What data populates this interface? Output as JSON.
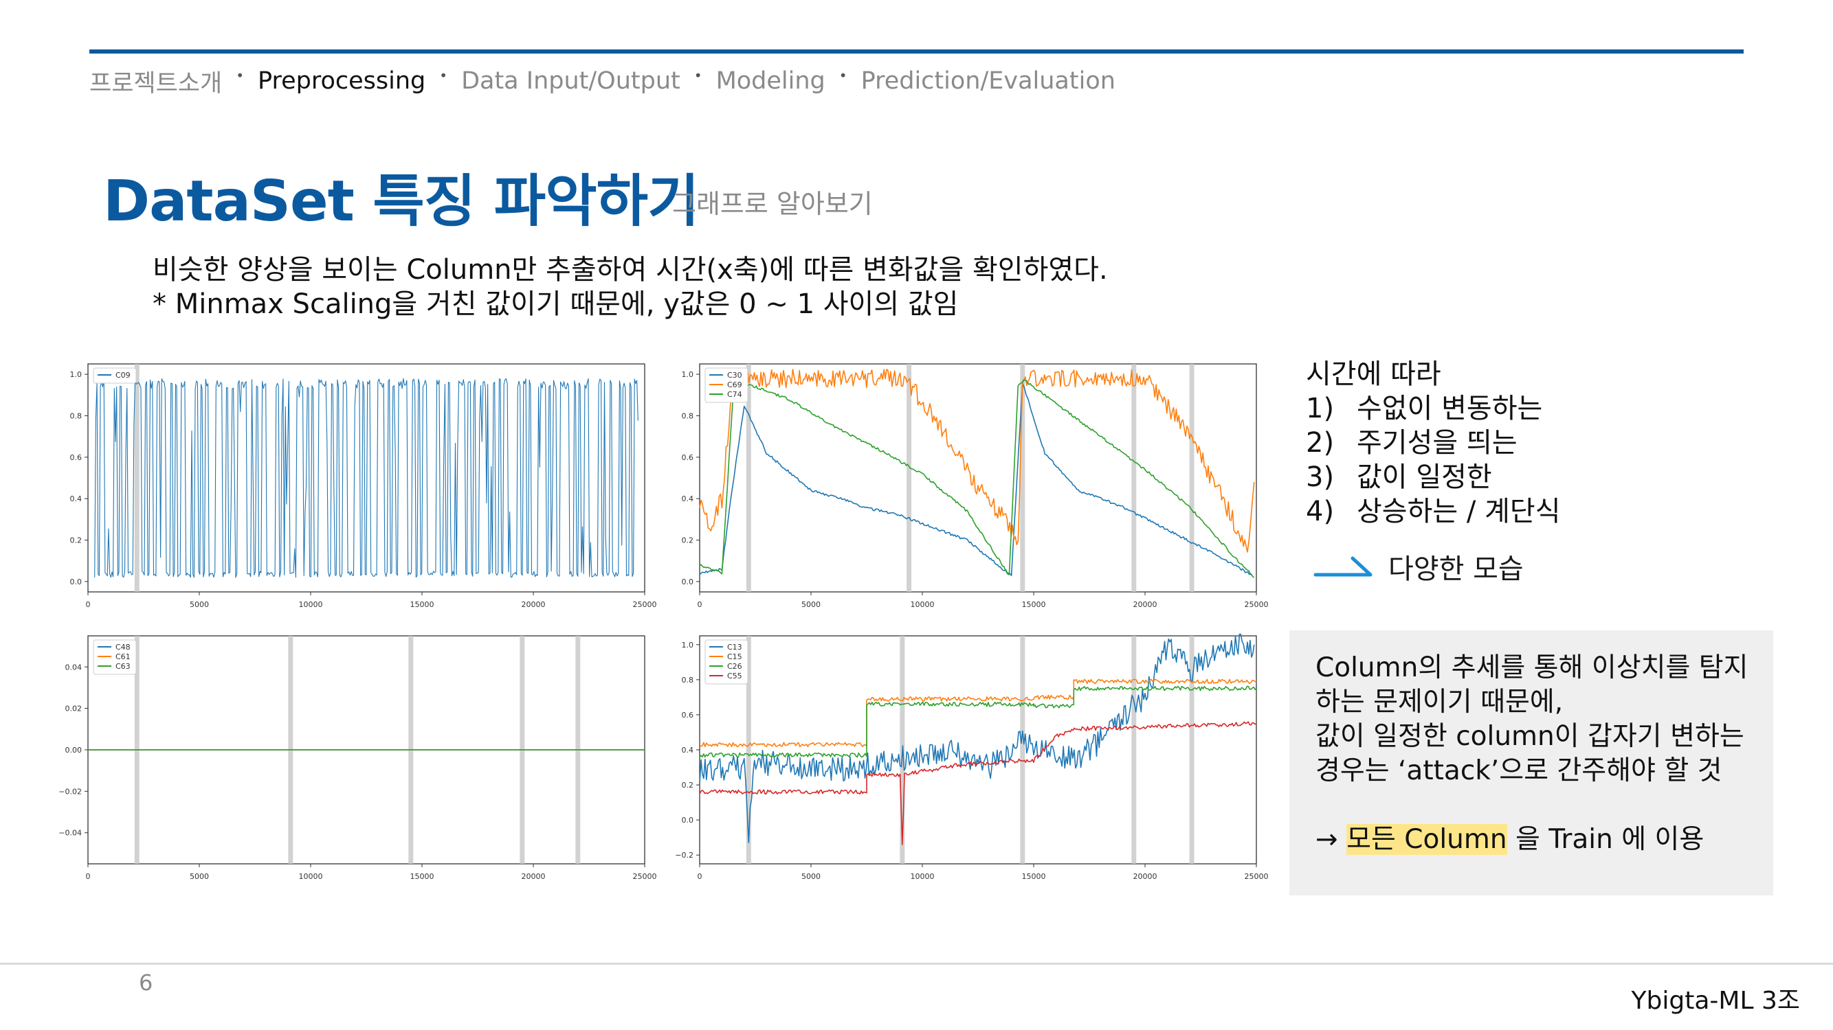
{
  "nav": {
    "items": [
      {
        "label": "프로젝트소개",
        "active": false
      },
      {
        "label": "Preprocessing",
        "active": true
      },
      {
        "label": "Data Input/Output",
        "active": false
      },
      {
        "label": "Modeling",
        "active": false
      },
      {
        "label": "Prediction/Evaluation",
        "active": false
      }
    ],
    "separator": "•"
  },
  "title": "DataSet 특징 파악하기",
  "subtitle": "그래프로 알아보기",
  "description": {
    "line1": "비슷한 양상을 보이는 Column만 추출하여 시간(x축)에 따른 변화값을 확인하였다.",
    "line2": "* Minmax Scaling을 거친 값이기 때문에, y값은 0 ~ 1 사이의 값임"
  },
  "trend": {
    "heading": "시간에 따라",
    "items": [
      {
        "num": "1)",
        "text": "수없이 변동하는"
      },
      {
        "num": "2)",
        "text": "주기성을 띄는"
      },
      {
        "num": "3)",
        "text": "값이 일정한"
      },
      {
        "num": "4)",
        "text": "상승하는 / 계단식"
      }
    ],
    "conclusion": "다양한 모습",
    "arrow_icon": "long-arrow-right-icon",
    "arrow_color": "#1a8fd8"
  },
  "note": {
    "line1": "Column의 추세를 통해 이상치를 탐지",
    "line2": "하는 문제이기 때문에,",
    "line3": "값이 일정한 column이 갑자기 변하는",
    "line4": "경우는 ‘attack’으로 간주해야 할 것",
    "arrow": "→",
    "highlight": "모든 Column",
    "rest": " 을 Train 에 이용",
    "highlight_color": "#fde68a"
  },
  "page_number": "6",
  "footer": "Ybigta-ML 3조",
  "colors": {
    "accent": "#0b5aa0",
    "c0": "#1f77b4",
    "c1": "#ff7f0e",
    "c2": "#2ca02c",
    "c3": "#d62728"
  },
  "chart_data": [
    {
      "type": "line",
      "xlim": [
        0,
        25000
      ],
      "ylim": [
        -0.05,
        1.05
      ],
      "xticks": [
        0,
        5000,
        10000,
        15000,
        20000,
        25000
      ],
      "xtick_labels": [
        "0",
        "5000",
        "10000",
        "15000",
        "20000",
        "25000"
      ],
      "yticks": [
        0,
        0.2,
        0.4,
        0.6,
        0.8,
        1.0
      ],
      "ytick_labels": [
        "0.0",
        "0.2",
        "0.4",
        "0.6",
        "0.8",
        "1.0"
      ],
      "legend": "top-left",
      "vlines": [
        2200
      ],
      "series": [
        {
          "name": "C09",
          "pattern": "oscillating",
          "low": 0.02,
          "high": 0.98
        }
      ]
    },
    {
      "type": "line",
      "xlim": [
        0,
        25000
      ],
      "ylim": [
        -0.05,
        1.05
      ],
      "xticks": [
        0,
        5000,
        10000,
        15000,
        20000,
        25000
      ],
      "xtick_labels": [
        "0",
        "5000",
        "10000",
        "15000",
        "20000",
        "25000"
      ],
      "yticks": [
        0,
        0.2,
        0.4,
        0.6,
        0.8,
        1.0
      ],
      "ytick_labels": [
        "0.0",
        "0.2",
        "0.4",
        "0.6",
        "0.8",
        "1.0"
      ],
      "legend": "top-left",
      "vlines": [
        2200,
        9400,
        14500,
        19500,
        22100
      ],
      "series": [
        {
          "name": "C30",
          "x": [
            0,
            1000,
            1400,
            2000,
            3000,
            5000,
            7000,
            7300,
            9000,
            12000,
            13500,
            14000,
            14500,
            15500,
            17000,
            19000,
            21000,
            23000,
            24800
          ],
          "y": [
            0.04,
            0.06,
            0.4,
            0.85,
            0.62,
            0.44,
            0.38,
            0.36,
            0.32,
            0.2,
            0.07,
            0.03,
            0.96,
            0.62,
            0.44,
            0.36,
            0.25,
            0.14,
            0.03
          ]
        },
        {
          "name": "C69",
          "x": [
            0,
            500,
            1000,
            1500,
            1800,
            4000,
            9000,
            9500,
            11000,
            12500,
            13800,
            14300,
            14500,
            15000,
            20000,
            20500,
            22000,
            23500,
            24600,
            24900
          ],
          "y": [
            0.4,
            0.27,
            0.4,
            0.96,
            0.98,
            0.98,
            0.98,
            0.94,
            0.72,
            0.45,
            0.3,
            0.2,
            0.97,
            0.98,
            0.98,
            0.92,
            0.7,
            0.4,
            0.15,
            0.48
          ]
        },
        {
          "name": "C74",
          "x": [
            0,
            1000,
            1500,
            2000,
            4000,
            6000,
            8000,
            10000,
            12000,
            13900,
            14300,
            14600,
            16000,
            18000,
            20000,
            22000,
            24000,
            24900
          ],
          "y": [
            0.08,
            0.04,
            0.9,
            0.96,
            0.88,
            0.75,
            0.64,
            0.52,
            0.34,
            0.03,
            0.95,
            0.97,
            0.86,
            0.7,
            0.54,
            0.36,
            0.12,
            0.02
          ]
        }
      ]
    },
    {
      "type": "line",
      "xlim": [
        0,
        25000
      ],
      "ylim": [
        -0.055,
        0.055
      ],
      "xticks": [
        0,
        5000,
        10000,
        15000,
        20000,
        25000
      ],
      "xtick_labels": [
        "0",
        "5000",
        "10000",
        "15000",
        "20000",
        "25000"
      ],
      "yticks": [
        -0.04,
        -0.02,
        0.0,
        0.02,
        0.04
      ],
      "ytick_labels": [
        "−0.04",
        "−0.02",
        "0.00",
        "0.02",
        "0.04"
      ],
      "legend": "top-left",
      "vlines": [
        2200,
        9100,
        14500,
        19500,
        22000
      ],
      "series": [
        {
          "name": "C48",
          "x": [
            0,
            25000
          ],
          "y": [
            0,
            0
          ]
        },
        {
          "name": "C61",
          "x": [
            0,
            25000
          ],
          "y": [
            0,
            0
          ]
        },
        {
          "name": "C63",
          "x": [
            0,
            25000
          ],
          "y": [
            0,
            0
          ]
        }
      ]
    },
    {
      "type": "line",
      "xlim": [
        0,
        25000
      ],
      "ylim": [
        -0.25,
        1.05
      ],
      "xticks": [
        0,
        5000,
        10000,
        15000,
        20000,
        25000
      ],
      "xtick_labels": [
        "0",
        "5000",
        "10000",
        "15000",
        "20000",
        "25000"
      ],
      "yticks": [
        -0.2,
        0.0,
        0.2,
        0.4,
        0.6,
        0.8,
        1.0
      ],
      "ytick_labels": [
        "−0.2",
        "0.0",
        "0.2",
        "0.4",
        "0.6",
        "0.8",
        "1.0"
      ],
      "legend": "top-left",
      "vlines": [
        2200,
        9100,
        14500,
        19500,
        22100
      ],
      "series": [
        {
          "name": "C13",
          "x": [
            0,
            2000,
            2200,
            2400,
            5000,
            7000,
            9000,
            11000,
            13000,
            14500,
            15000,
            17000,
            18000,
            19000,
            20000,
            21000,
            22000,
            23000,
            24000,
            24900
          ],
          "y": [
            0.28,
            0.3,
            -0.1,
            0.34,
            0.28,
            0.3,
            0.35,
            0.4,
            0.3,
            0.45,
            0.4,
            0.35,
            0.45,
            0.6,
            0.7,
            1.0,
            0.85,
            0.95,
            1.0,
            1.0
          ]
        },
        {
          "name": "C15",
          "x": [
            0,
            7499,
            7500,
            14999,
            15000,
            16799,
            16800,
            25000
          ],
          "y": [
            0.43,
            0.43,
            0.69,
            0.69,
            0.7,
            0.7,
            0.79,
            0.79
          ]
        },
        {
          "name": "C26",
          "x": [
            0,
            7499,
            7500,
            14999,
            15000,
            16799,
            16800,
            25000
          ],
          "y": [
            0.37,
            0.37,
            0.66,
            0.66,
            0.65,
            0.65,
            0.75,
            0.75
          ]
        },
        {
          "name": "C55",
          "x": [
            0,
            7499,
            7500,
            9000,
            9100,
            9200,
            12000,
            14999,
            16000,
            17000,
            20000,
            25000
          ],
          "y": [
            0.16,
            0.16,
            0.26,
            0.26,
            -0.15,
            0.26,
            0.32,
            0.34,
            0.48,
            0.52,
            0.53,
            0.55
          ]
        }
      ]
    }
  ]
}
